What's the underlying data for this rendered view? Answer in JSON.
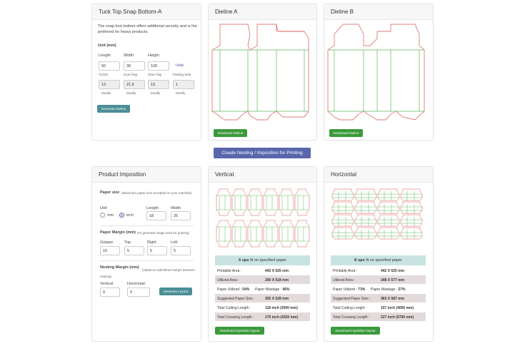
{
  "dieline_panel": {
    "title": "Tuck Top Snap Bottom-A",
    "description": "The snap lock bottom offers additional security and is the preferred for heavy products.",
    "unit_label": "Unit (mm)",
    "length_label": "Length",
    "length_value": "50",
    "width_label": "Width",
    "width_value": "30",
    "height_label": "Height",
    "height_value": "100",
    "help_link": "Help",
    "tuckin_label": "Tuckin",
    "tuckin_value": "13",
    "dustflap_label": "Dust Flap",
    "dustflap_value": "21.5",
    "glueflap_label": "Glue Flap",
    "glueflap_value": "13",
    "pastingside_label": "Pasting Side",
    "pastingside_value": "1",
    "modify_label": "Modify",
    "generate_button": "Generate Dieline"
  },
  "dieline_a": {
    "title": "Dieline A",
    "download_button": "Download Dieline"
  },
  "dieline_b": {
    "title": "Dieline B",
    "download_button": "Download Dieline"
  },
  "nesting_button": "Create Nesting / Imposition for Printing",
  "imposition_panel": {
    "title": "Product Imposition",
    "paper_size_label": "Paper size",
    "paper_size_note": "(Maximum paper size accepted on your machine)",
    "unit_label": "Unit",
    "unit_options": [
      "mm",
      "inch"
    ],
    "unit_selected": "inch",
    "length_label": "Length",
    "length_value": "18",
    "width_label": "Width",
    "width_value": "25",
    "margin_label": "Paper Margin (mm)",
    "margin_note": "(To generate image area for printing)",
    "gripper_label": "Gripper",
    "gripper_value": "10",
    "top_label": "Top",
    "top_value": "5",
    "right_label": "Right",
    "right_value": "5",
    "left_label": "Left",
    "left_value": "5",
    "nesting_label": "Nesting Margin (mm)",
    "nesting_note": "(Option to add bleed margin between nesting)",
    "vertical_label": "Vertical",
    "vertical_value": "0",
    "horizontal_label": "Horizontal",
    "horizontal_value": "0",
    "generate_button": "Generate Layout"
  },
  "vertical": {
    "title": "Vertical",
    "ups_count": "6 ups",
    "ups_text": "fit on specified paper",
    "printable_area_label": "Printable Area :",
    "printable_area": "442 X 625 mm",
    "utilized_area_label": "Utilized Area :",
    "utilized_area": "290 X 518 mm",
    "paper_utilized_label": "Paper Utilized :",
    "paper_utilized": "54%",
    "paper_wastage_label": "Paper Wastage :",
    "paper_wastage": "46%",
    "suggested_size_label": "Suggested Paper Size :",
    "suggested_size": "305 X 528 mm",
    "cutting_length_label": "Total Cutting Length :",
    "cutting_length": "118 inch (3000 mm)",
    "creasing_length_label": "Total Creasing Length :",
    "creasing_length": "170 inch (4320 mm)",
    "download_button": "Download imposition layout"
  },
  "horizontal": {
    "title": "Horizontal",
    "ups_count": "8 ups",
    "ups_text": "fit on specified paper",
    "printable_area_label": "Printable Area :",
    "printable_area": "442 X 625 mm",
    "utilized_area_label": "Utilized Area :",
    "utilized_area": "348 X 577 mm",
    "paper_utilized_label": "Paper Utilized :",
    "paper_utilized": "73%",
    "paper_wastage_label": "Paper Wastage :",
    "paper_wastage": "27%",
    "suggested_size_label": "Suggested Paper Size :",
    "suggested_size": "363 X 587 mm",
    "cutting_length_label": "Total Cutting Length :",
    "cutting_length": "157 inch (4000 mm)",
    "creasing_length_label": "Total Creasing Length :",
    "creasing_length": "227 inch (5760 mm)",
    "download_button": "Download imposition layout"
  },
  "colors": {
    "cut_line": "#d9534f",
    "crease_line": "#5cb85c",
    "primary": "#5966ad",
    "success": "#3b9a3b",
    "info": "#4b8e96"
  }
}
